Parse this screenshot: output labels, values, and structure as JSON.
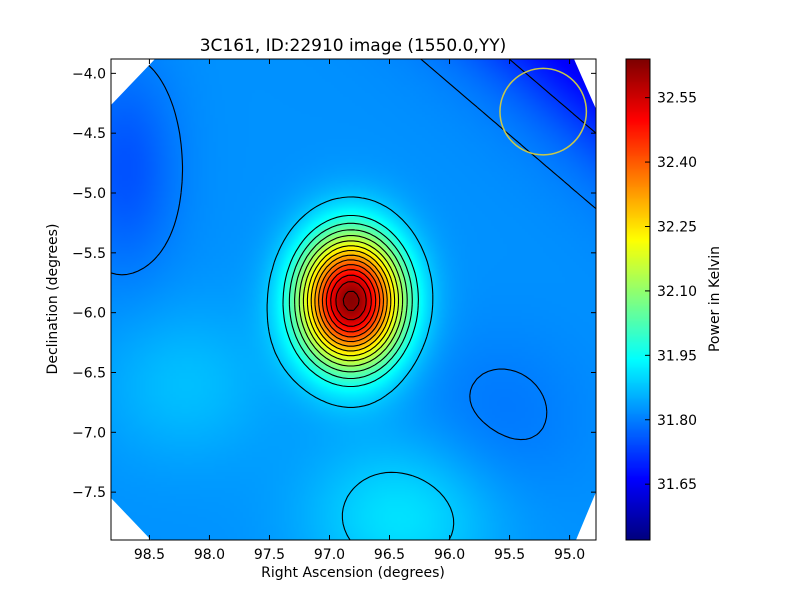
{
  "chart_data": {
    "type": "heatmap",
    "title": "3C161, ID:22910 image (1550.0,YY)",
    "xlabel": "Right Ascension (degrees)",
    "ylabel": "Declination (degrees)",
    "xlim": [
      98.82,
      94.78
    ],
    "ylim": [
      -7.9,
      -3.88
    ],
    "x_ticks": [
      98.5,
      98.0,
      97.5,
      97.0,
      96.5,
      96.0,
      95.5,
      95.0
    ],
    "x_tick_labels": [
      "98.5",
      "98.0",
      "97.5",
      "97.0",
      "96.5",
      "96.0",
      "95.5",
      "95.0"
    ],
    "y_ticks": [
      -4.0,
      -4.5,
      -5.0,
      -5.5,
      -6.0,
      -6.5,
      -7.0,
      -7.5
    ],
    "y_tick_labels": [
      "−4.0",
      "−4.5",
      "−5.0",
      "−5.5",
      "−6.0",
      "−6.5",
      "−7.0",
      "−7.5"
    ],
    "colormap": "jet",
    "colorbar": {
      "label": "Power in Kelvin",
      "range": [
        31.52,
        32.64
      ],
      "ticks": [
        31.65,
        31.8,
        31.95,
        32.1,
        32.25,
        32.4,
        32.55
      ],
      "tick_labels": [
        "31.65",
        "31.80",
        "31.95",
        "32.10",
        "32.25",
        "32.40",
        "32.55"
      ]
    },
    "source_peak": {
      "ra": 96.82,
      "dec": -5.9,
      "value": 32.63
    },
    "background_level": 31.82,
    "beam_circle": {
      "ra": 95.22,
      "dec": -4.32,
      "radius_deg": 0.36,
      "color": "#c8c84a"
    },
    "grid": false,
    "legend": "none"
  }
}
